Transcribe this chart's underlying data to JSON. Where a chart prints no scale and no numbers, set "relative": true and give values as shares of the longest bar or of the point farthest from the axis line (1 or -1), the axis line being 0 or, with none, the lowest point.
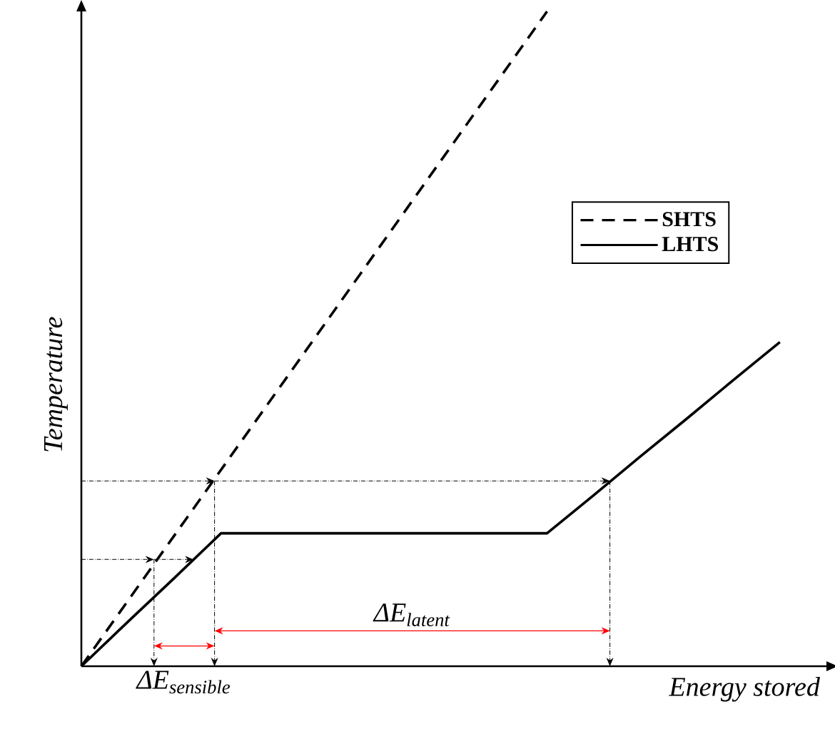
{
  "chart_data": {
    "type": "line",
    "relative": true,
    "xlabel": "Energy stored",
    "ylabel": "Temperature",
    "categories": [
      null,
      null,
      null,
      null,
      null,
      null,
      null,
      null,
      null,
      null,
      null,
      null,
      null,
      null,
      null,
      null,
      null
    ],
    "legend": "top right",
    "marker": "none",
    "series": [
      {
        "name": "SHTS",
        "color": "#000000",
        "line_style": "dashed",
        "values": [
          0,
          0.1,
          0.2,
          0.3,
          0.4,
          0.5,
          0.6,
          0.7,
          0.8,
          0.9,
          1.0,
          null,
          null,
          null,
          null,
          null,
          null
        ]
      },
      {
        "name": "LHTS",
        "color": "#000000",
        "line_style": "solid",
        "values": [
          0,
          0.068,
          0.135,
          0.203,
          0.203,
          0.203,
          0.203,
          0.203,
          0.203,
          0.203,
          0.203,
          0.261,
          0.32,
          0.378,
          0.437,
          0.495,
          null
        ]
      }
    ],
    "annotations": [
      "ΔE$_{sensible}$",
      "ΔE$_{latent}$"
    ]
  }
}
